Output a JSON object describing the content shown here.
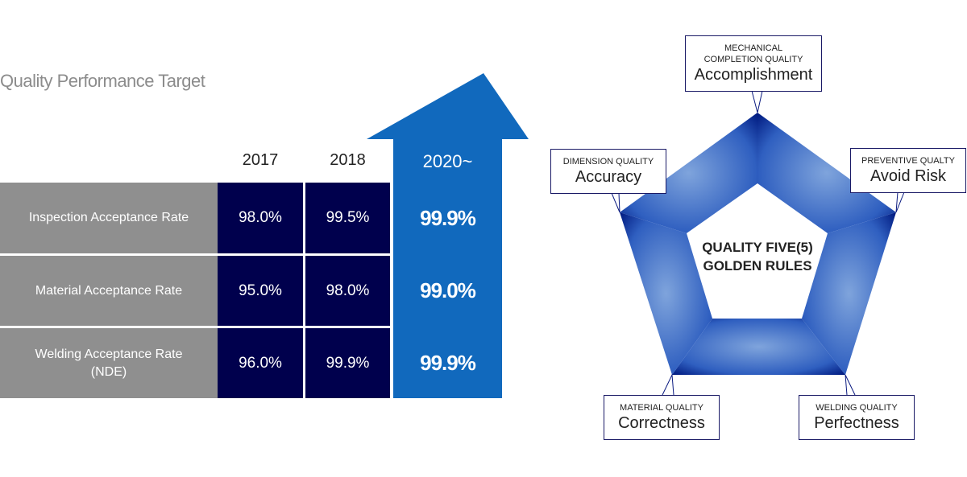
{
  "title": "Quality Performance Target",
  "columns": [
    "2017",
    "2018",
    "2020~"
  ],
  "rows": [
    {
      "label": "Inspection Acceptance  Rate",
      "label2": "",
      "v2017": "98.0%",
      "v2018": "99.5%",
      "v2020": "99.9%"
    },
    {
      "label": "Material Acceptance  Rate",
      "label2": "",
      "v2017": "95.0%",
      "v2018": "98.0%",
      "v2020": "99.0%"
    },
    {
      "label": "Welding Acceptance Rate",
      "label2": "(NDE)",
      "v2017": "96.0%",
      "v2018": "99.9%",
      "v2020": "99.9%"
    }
  ],
  "diagram": {
    "center_line1": "QUALITY FIVE(5)",
    "center_line2": "GOLDEN RULES",
    "rules": [
      {
        "sub": "MECHANICAL",
        "sub2": "COMPLETION QUALITY",
        "main": "Accomplishment"
      },
      {
        "sub": "DIMENSION QUALITY",
        "main": "Accuracy"
      },
      {
        "sub": "PREVENTIVE QUALTY",
        "main": "Avoid Risk"
      },
      {
        "sub": "MATERIAL  QUALITY",
        "main": "Correctness"
      },
      {
        "sub": "WELDING QUALITY",
        "main": "Perfectness"
      }
    ]
  },
  "colors": {
    "navy": "#00004d",
    "blue": "#1169bd",
    "gray": "#8f8f8f"
  }
}
